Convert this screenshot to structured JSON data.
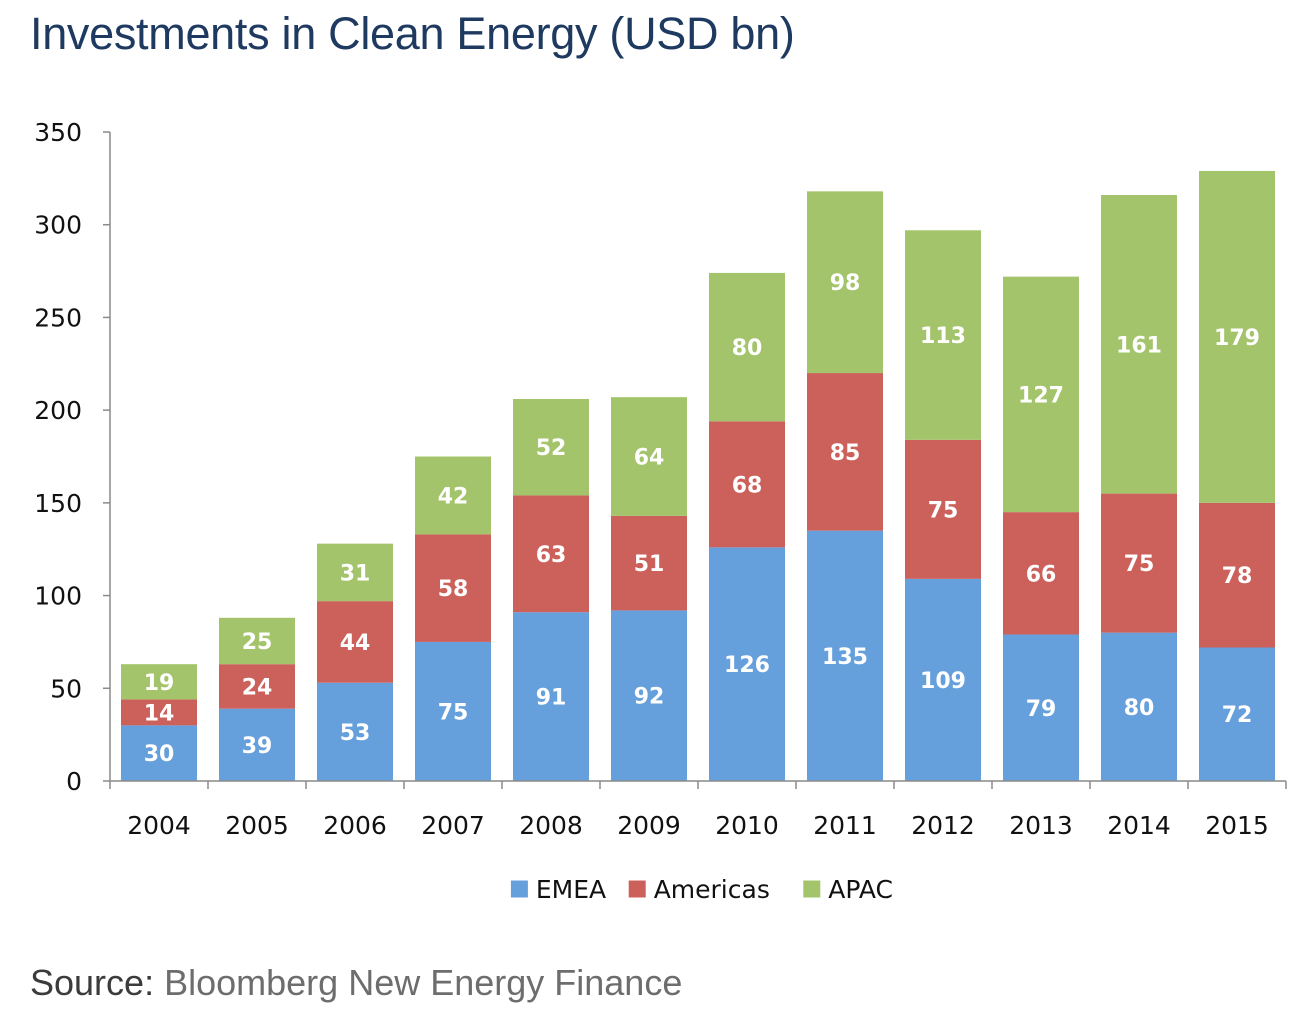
{
  "chart_data": {
    "type": "bar",
    "stacked": true,
    "title": "Investments in Clean Energy (USD bn)",
    "xlabel": "",
    "ylabel": "",
    "ylim": [
      0,
      350
    ],
    "yticks": [
      0,
      50,
      100,
      150,
      200,
      250,
      300,
      350
    ],
    "grid": false,
    "legend_position": "bottom",
    "categories": [
      "2004",
      "2005",
      "2006",
      "2007",
      "2008",
      "2009",
      "2010",
      "2011",
      "2012",
      "2013",
      "2014",
      "2015"
    ],
    "series": [
      {
        "name": "EMEA",
        "color": "#659FDC",
        "values": [
          30,
          39,
          53,
          75,
          91,
          92,
          126,
          135,
          109,
          79,
          80,
          72
        ]
      },
      {
        "name": "Americas",
        "color": "#CC615B",
        "values": [
          14,
          24,
          44,
          58,
          63,
          51,
          68,
          85,
          75,
          66,
          75,
          78
        ]
      },
      {
        "name": "APAC",
        "color": "#A3C46B",
        "values": [
          19,
          25,
          31,
          42,
          52,
          64,
          80,
          98,
          113,
          127,
          161,
          179
        ]
      }
    ]
  },
  "source": {
    "label": "Source:",
    "text": "Bloomberg New Energy Finance"
  }
}
